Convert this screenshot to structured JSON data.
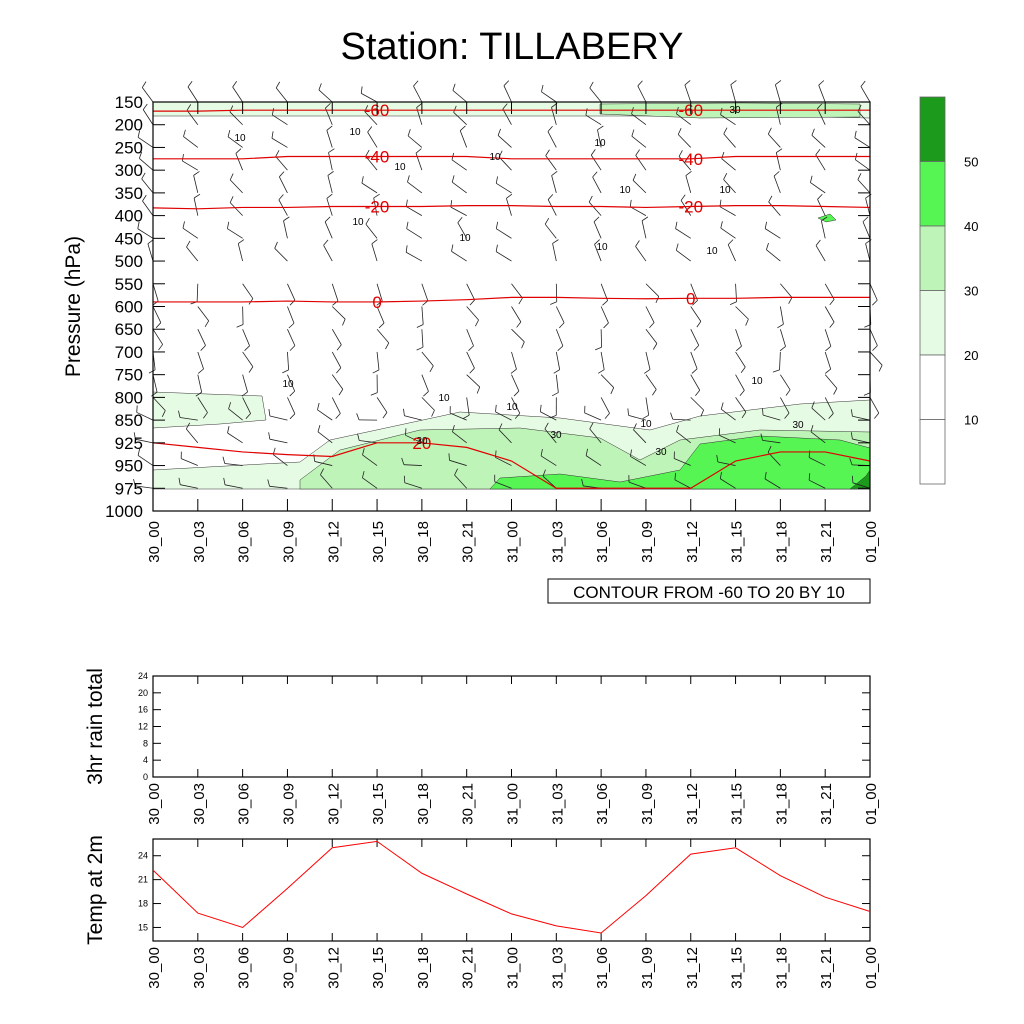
{
  "title": "Station: TILLABERY",
  "x_labels": [
    "30_00",
    "30_03",
    "30_06",
    "30_09",
    "30_12",
    "30_15",
    "30_18",
    "30_21",
    "31_00",
    "31_03",
    "31_06",
    "31_09",
    "31_12",
    "31_15",
    "31_18",
    "31_21",
    "01_00"
  ],
  "chart_data": [
    {
      "type": "heatmap",
      "title": "Station: TILLABERY",
      "ylabel": "Pressure (hPa)",
      "y_levels": [
        150,
        200,
        250,
        300,
        350,
        400,
        450,
        500,
        550,
        600,
        650,
        700,
        750,
        800,
        850,
        925,
        950,
        975,
        1000
      ],
      "y_reversed": true,
      "contour_note": "CONTOUR FROM -60 TO 20 BY 10",
      "temperature_contours": [
        {
          "label": "-40",
          "pressure": [
            275,
            275,
            275,
            270,
            270,
            270,
            270,
            270,
            275,
            275,
            275,
            275,
            275,
            270,
            270,
            270,
            270
          ]
        },
        {
          "label": "-20",
          "pressure": [
            383,
            385,
            382,
            382,
            380,
            380,
            380,
            378,
            378,
            380,
            380,
            382,
            380,
            378,
            378,
            380,
            382
          ]
        },
        {
          "label": "0",
          "pressure": [
            590,
            590,
            590,
            588,
            590,
            590,
            588,
            585,
            580,
            580,
            582,
            583,
            582,
            582,
            580,
            580,
            580
          ]
        },
        {
          "label": "-60",
          "pressure": [
            170,
            170,
            168,
            168,
            168,
            168,
            168,
            168,
            168,
            168,
            168,
            168,
            168,
            168,
            168,
            168,
            168
          ]
        },
        {
          "label": "20",
          "pressure": [
            925,
            930,
            935,
            938,
            940,
            925,
            925,
            930,
            945,
            975,
            975,
            975,
            975,
            945,
            935,
            935,
            945
          ]
        }
      ],
      "wind_speed_shading": {
        "legend_levels": [
          "10",
          "20",
          "30",
          "40",
          "50"
        ],
        "colors": [
          "#ffffff",
          "#ffffff",
          "#e6fbe3",
          "#bff4b8",
          "#56f554",
          "#1b9a1b"
        ]
      },
      "wind_speed_contour_labels": [
        "10",
        "30"
      ]
    },
    {
      "type": "line",
      "ylabel": "3hr rain total",
      "ylim": [
        0,
        24
      ],
      "yticks": [
        0,
        4,
        8,
        12,
        16,
        20,
        24
      ],
      "categories": [
        "30_00",
        "30_03",
        "30_06",
        "30_09",
        "30_12",
        "30_15",
        "30_18",
        "30_21",
        "31_00",
        "31_03",
        "31_06",
        "31_09",
        "31_12",
        "31_15",
        "31_18",
        "31_21",
        "01_00"
      ],
      "values": [
        0,
        0,
        0,
        0,
        0,
        0,
        0,
        0,
        0,
        0,
        0,
        0,
        0,
        0,
        0,
        0,
        0
      ]
    },
    {
      "type": "line",
      "ylabel": "Temp at 2m",
      "ylim": [
        13.3,
        26.1
      ],
      "yticks": [
        15,
        18,
        21,
        24
      ],
      "categories": [
        "30_00",
        "30_03",
        "30_06",
        "30_09",
        "30_12",
        "30_15",
        "30_18",
        "30_21",
        "31_00",
        "31_03",
        "31_06",
        "31_09",
        "31_12",
        "31_15",
        "31_18",
        "31_21",
        "01_00"
      ],
      "values": [
        22.2,
        16.8,
        15.0,
        19.9,
        25.0,
        25.8,
        21.8,
        19.2,
        16.7,
        15.2,
        14.3,
        19.0,
        24.2,
        25.0,
        21.5,
        18.8,
        17.0
      ],
      "color": "#ff0000"
    }
  ]
}
